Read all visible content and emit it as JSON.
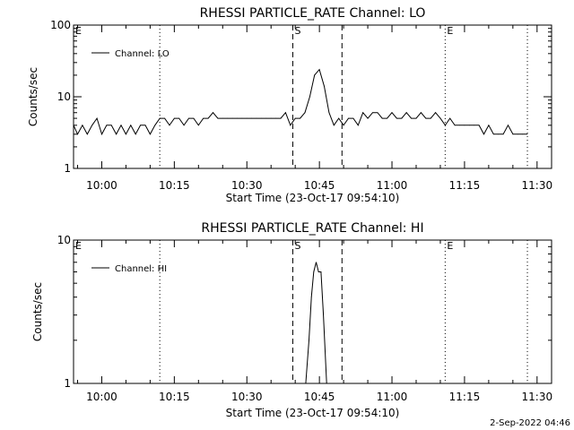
{
  "footer": {
    "timestamp": "2-Sep-2022 04:46"
  },
  "chart_data": [
    {
      "type": "line",
      "title": "RHESSI PARTICLE_RATE Channel: LO",
      "xlabel": "Start Time (23-Oct-17 09:54:10)",
      "ylabel": "Counts/sec",
      "yscale": "log",
      "ylim": [
        1,
        100
      ],
      "y_ticks": [
        1,
        10,
        100
      ],
      "y_tick_labels": [
        "1",
        "10",
        "100"
      ],
      "xlim": [
        "09:54:10",
        "11:33:00"
      ],
      "x_ticks": [
        "10:00",
        "10:15",
        "10:30",
        "10:45",
        "11:00",
        "11:15",
        "11:30"
      ],
      "legend": {
        "position": "top-left",
        "entries": [
          "Channel: LO"
        ]
      },
      "markers": [
        {
          "label": "E",
          "time": "09:54:10",
          "style": "dotted"
        },
        {
          "label": "",
          "time": "10:12:00",
          "style": "dotted"
        },
        {
          "label": "S",
          "time": "10:39:30",
          "style": "dashed"
        },
        {
          "label": "",
          "time": "10:49:40",
          "style": "dashed"
        },
        {
          "label": "E",
          "time": "11:11:00",
          "style": "dotted"
        },
        {
          "label": "",
          "time": "11:28:00",
          "style": "dotted"
        }
      ],
      "series": [
        {
          "name": "Channel: LO",
          "x": [
            "09:54:10",
            "09:55:00",
            "09:56:00",
            "09:57:00",
            "09:58:00",
            "09:59:00",
            "10:00:00",
            "10:01:00",
            "10:02:00",
            "10:03:00",
            "10:04:00",
            "10:05:00",
            "10:06:00",
            "10:07:00",
            "10:08:00",
            "10:09:00",
            "10:10:00",
            "10:11:00",
            "10:12:00",
            "10:13:00",
            "10:14:00",
            "10:15:00",
            "10:16:00",
            "10:17:00",
            "10:18:00",
            "10:19:00",
            "10:20:00",
            "10:21:00",
            "10:22:00",
            "10:23:00",
            "10:24:00",
            "10:25:00",
            "10:26:00",
            "10:27:00",
            "10:28:00",
            "10:29:00",
            "10:30:00",
            "10:31:00",
            "10:32:00",
            "10:33:00",
            "10:34:00",
            "10:35:00",
            "10:36:00",
            "10:37:00",
            "10:38:00",
            "10:39:00",
            "10:40:00",
            "10:41:00",
            "10:42:00",
            "10:43:00",
            "10:44:00",
            "10:45:00",
            "10:46:00",
            "10:47:00",
            "10:48:00",
            "10:49:00",
            "10:50:00",
            "10:51:00",
            "10:52:00",
            "10:53:00",
            "10:54:00",
            "10:55:00",
            "10:56:00",
            "10:57:00",
            "10:58:00",
            "10:59:00",
            "11:00:00",
            "11:01:00",
            "11:02:00",
            "11:03:00",
            "11:04:00",
            "11:05:00",
            "11:06:00",
            "11:07:00",
            "11:08:00",
            "11:09:00",
            "11:10:00",
            "11:11:00",
            "11:12:00",
            "11:13:00",
            "11:14:00",
            "11:15:00",
            "11:16:00",
            "11:17:00",
            "11:18:00",
            "11:19:00",
            "11:20:00",
            "11:21:00",
            "11:22:00",
            "11:23:00",
            "11:24:00",
            "11:25:00",
            "11:26:00",
            "11:27:00",
            "11:28:00"
          ],
          "values": [
            4,
            3,
            4,
            3,
            4,
            5,
            3,
            4,
            4,
            3,
            4,
            3,
            4,
            3,
            4,
            4,
            3,
            4,
            5,
            5,
            4,
            5,
            5,
            4,
            5,
            5,
            4,
            5,
            5,
            6,
            5,
            5,
            5,
            5,
            5,
            5,
            5,
            5,
            5,
            5,
            5,
            5,
            5,
            5,
            6,
            4,
            5,
            5,
            6,
            10,
            20,
            24,
            14,
            6,
            4,
            5,
            4,
            5,
            5,
            4,
            6,
            5,
            6,
            6,
            5,
            5,
            6,
            5,
            5,
            6,
            5,
            5,
            6,
            5,
            5,
            6,
            5,
            4,
            5,
            4,
            4,
            4,
            4,
            4,
            4,
            3,
            4,
            3,
            3,
            3,
            4,
            3,
            3,
            3,
            3
          ],
          "color": "#000000"
        }
      ]
    },
    {
      "type": "line",
      "title": "RHESSI PARTICLE_RATE Channel: HI",
      "xlabel": "Start Time (23-Oct-17 09:54:10)",
      "ylabel": "Counts/sec",
      "yscale": "log",
      "ylim": [
        1,
        10
      ],
      "y_ticks": [
        1,
        10
      ],
      "y_tick_labels": [
        "1",
        "10"
      ],
      "xlim": [
        "09:54:10",
        "11:33:00"
      ],
      "x_ticks": [
        "10:00",
        "10:15",
        "10:30",
        "10:45",
        "11:00",
        "11:15",
        "11:30"
      ],
      "legend": {
        "position": "top-left",
        "entries": [
          "Channel: HI"
        ]
      },
      "markers": [
        {
          "label": "E",
          "time": "09:54:10",
          "style": "dotted"
        },
        {
          "label": "",
          "time": "10:12:00",
          "style": "dotted"
        },
        {
          "label": "S",
          "time": "10:39:30",
          "style": "dashed"
        },
        {
          "label": "",
          "time": "10:49:40",
          "style": "dashed"
        },
        {
          "label": "E",
          "time": "11:11:00",
          "style": "dotted"
        },
        {
          "label": "",
          "time": "11:28:00",
          "style": "dotted"
        }
      ],
      "series": [
        {
          "name": "Channel: HI",
          "x": [
            "10:42:10",
            "10:42:50",
            "10:43:20",
            "10:43:50",
            "10:44:20",
            "10:44:50",
            "10:45:20",
            "10:45:50",
            "10:46:30"
          ],
          "values": [
            1,
            2,
            4,
            6,
            7,
            6,
            6,
            3,
            1
          ],
          "color": "#000000"
        }
      ]
    }
  ]
}
